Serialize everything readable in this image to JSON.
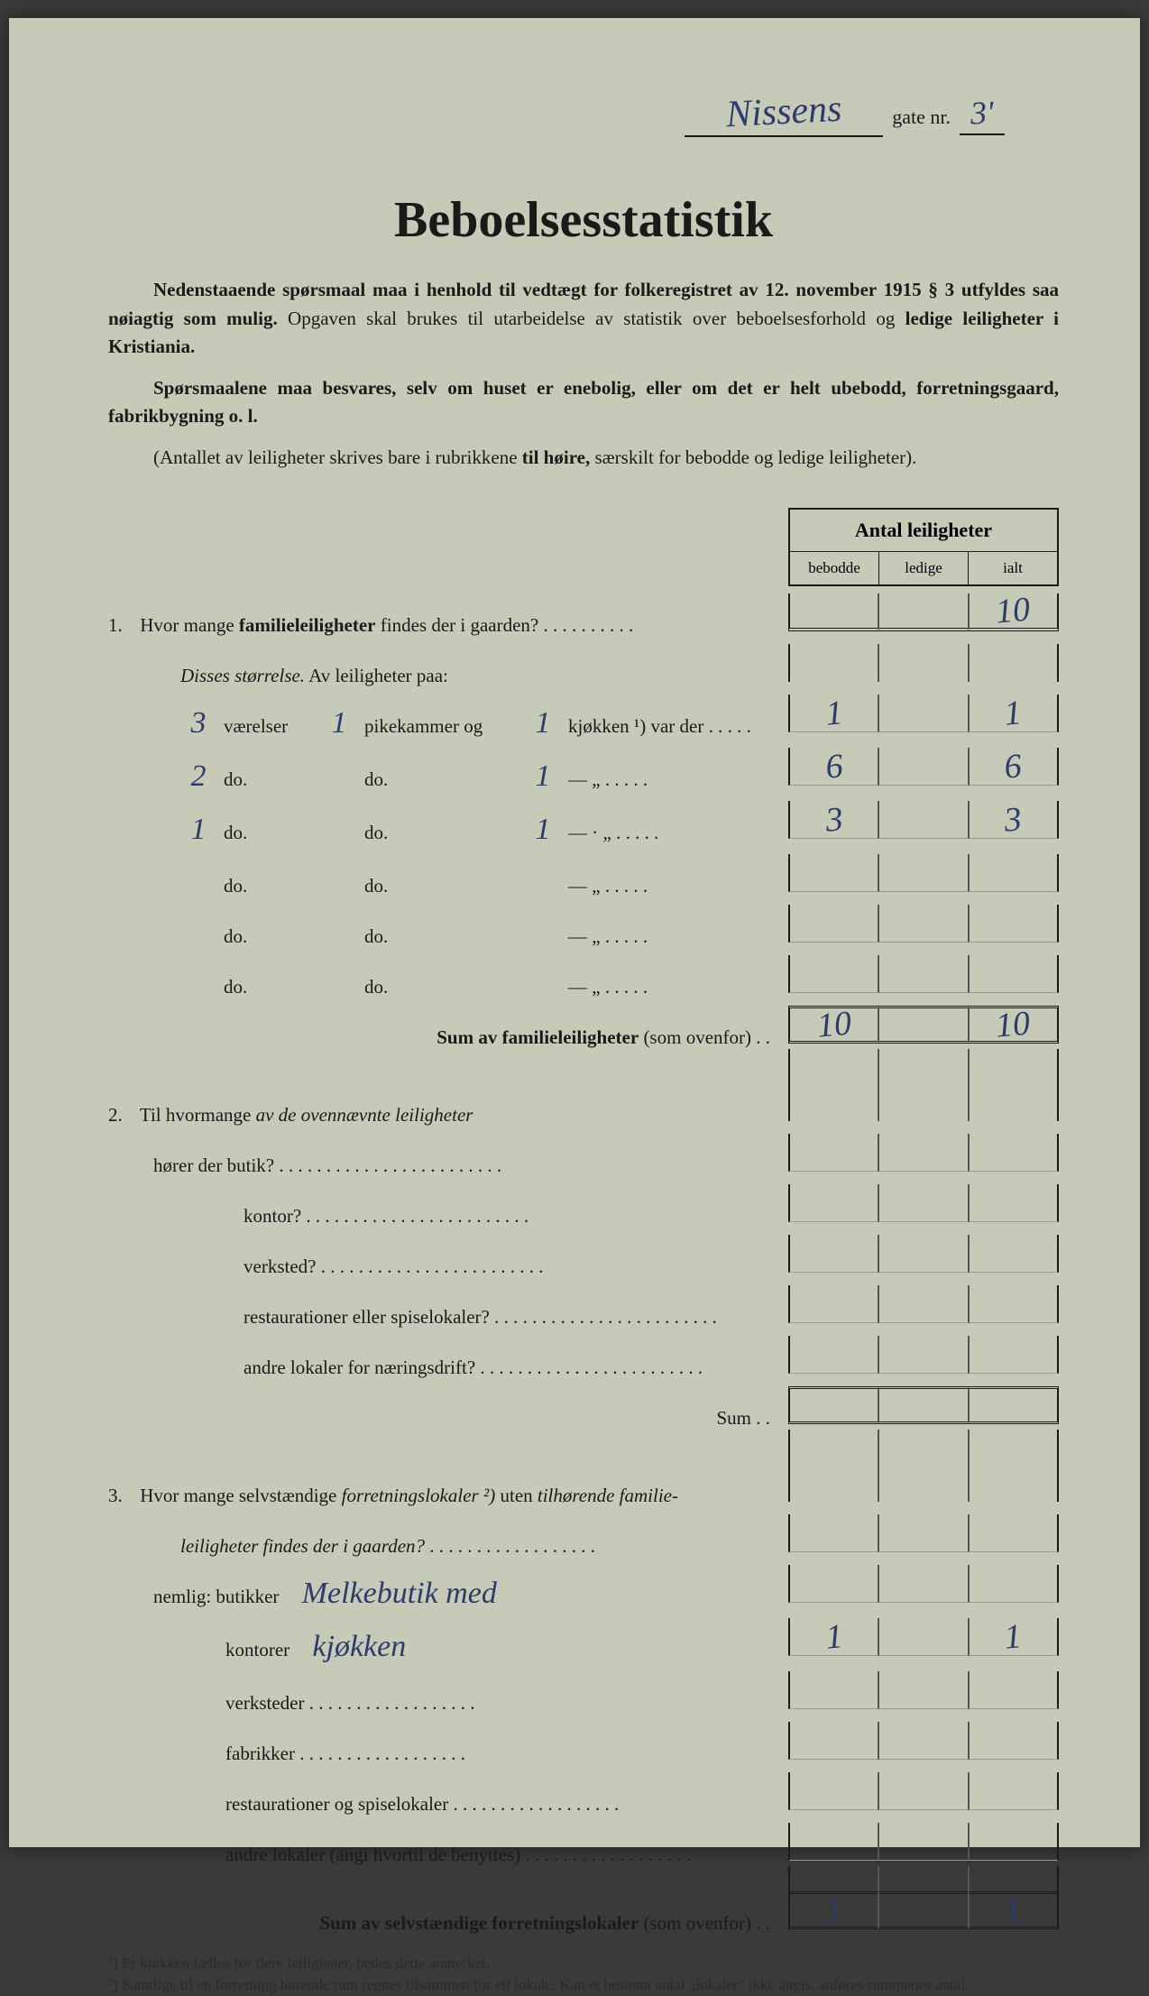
{
  "header": {
    "street_name": "Nissens",
    "gate_label": "gate nr.",
    "gate_nr": "3'"
  },
  "title": "Beboelsesstatistik",
  "intro": {
    "p1": "Nedenstaaende spørsmaal maa i henhold til vedtægt for folkeregistret av 12. november 1915 § 3 utfyldes saa nøiagtig som mulig. Opgaven skal brukes til utarbeidelse av statistik over beboelsesforhold og ledige leiligheter i Kristiania.",
    "p2": "Spørsmaalene maa besvares, selv om huset er enebolig, eller om det er helt ubebodd, forretningsgaard, fabrikbygning o. l.",
    "p3": "(Antallet av leiligheter skrives bare i rubrikkene til høire, særskilt for bebodde og ledige leiligheter)."
  },
  "table_header": {
    "main": "Antal leiligheter",
    "cols": [
      "bebodde",
      "ledige",
      "ialt"
    ]
  },
  "q1": {
    "num": "1.",
    "text": "Hvor mange ",
    "bold": "familieleiligheter",
    "text2": " findes der i gaarden?",
    "ialt": "10",
    "subtitle": "Disses størrelse.",
    "subtitle2": "Av leiligheter paa:",
    "rows": [
      {
        "vaer": "3",
        "pike": "1",
        "kjok": "1",
        "label1": "værelser",
        "label2": "pikekammer og",
        "label3": "kjøkken ¹) var der",
        "bebodde": "1",
        "ialt": "1"
      },
      {
        "vaer": "2",
        "pike": "",
        "kjok": "1",
        "label1": "do.",
        "label2": "do.",
        "label3": "—        „",
        "bebodde": "6",
        "ialt": "6"
      },
      {
        "vaer": "1",
        "pike": "",
        "kjok": "1",
        "label1": "do.",
        "label2": "do.",
        "label3": "—   ·    „",
        "bebodde": "3",
        "ialt": "3"
      },
      {
        "vaer": "",
        "pike": "",
        "kjok": "",
        "label1": "do.",
        "label2": "do.",
        "label3": "—        „",
        "bebodde": "",
        "ialt": ""
      },
      {
        "vaer": "",
        "pike": "",
        "kjok": "",
        "label1": "do.",
        "label2": "do.",
        "label3": "—        „",
        "bebodde": "",
        "ialt": ""
      },
      {
        "vaer": "",
        "pike": "",
        "kjok": "",
        "label1": "do.",
        "label2": "do.",
        "label3": "—        „",
        "bebodde": "",
        "ialt": ""
      }
    ],
    "sum_label": "Sum av familieleiligheter",
    "sum_note": "(som ovenfor)",
    "sum_bebodde": "10",
    "sum_ialt": "10"
  },
  "q2": {
    "num": "2.",
    "text": "Til hvormange ",
    "italic": "av de ovennævnte leiligheter",
    "rows": [
      {
        "label": "hører der butik?"
      },
      {
        "label": "kontor?"
      },
      {
        "label": "verksted?"
      },
      {
        "label": "restaurationer eller spiselokaler?"
      },
      {
        "label": "andre lokaler for næringsdrift?"
      }
    ],
    "sum_label": "Sum"
  },
  "q3": {
    "num": "3.",
    "text1": "Hvor mange selvstændige ",
    "italic1": "forretningslokaler ²)",
    "text2": " uten ",
    "italic2": "tilhørende familie-leiligheter findes der i gaarden?",
    "nemlig": "nemlig:",
    "rows": [
      {
        "label": "butikker",
        "hw": "Melkebutik med",
        "bebodde": "",
        "ialt": ""
      },
      {
        "label": "kontorer",
        "hw": "kjøkken",
        "bebodde": "1",
        "ialt": "1"
      },
      {
        "label": "verksteder",
        "hw": "",
        "bebodde": "",
        "ialt": ""
      },
      {
        "label": "fabrikker",
        "hw": "",
        "bebodde": "",
        "ialt": ""
      },
      {
        "label": "restaurationer og spiselokaler",
        "hw": "",
        "bebodde": "",
        "ialt": ""
      },
      {
        "label": "andre lokaler (angi hvortil de benyttes)",
        "hw": "",
        "bebodde": "",
        "ialt": ""
      }
    ],
    "sum_label": "Sum av selvstændige forretningslokaler",
    "sum_note": "(som ovenfor)",
    "sum_bebodde": "1",
    "sum_ialt": "1"
  },
  "footnotes": {
    "f1": "¹) Er kjøkken fælles for flere leiligheter, bedes dette anmerket.",
    "f2": "²) Samtlige til en forretning hørende rum regnes tilsammen for ett lokale. Kan et bestemt antal „lokaler\" ikke angis, anføres rummenes antal."
  }
}
